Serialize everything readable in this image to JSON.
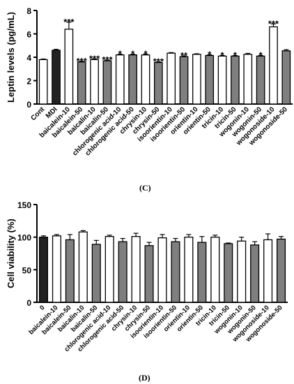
{
  "panels": {
    "c_label": "(C)",
    "d_label": "(D)"
  },
  "colors": {
    "white": "#ffffff",
    "black": "#222222",
    "gray": "#7f7f7f"
  },
  "chart_data": [
    {
      "type": "bar",
      "panel": "(C)",
      "ylabel": "Leptin levels (pg/mL)",
      "xlabel": "",
      "ylim": [
        0,
        8
      ],
      "yticks": [
        0,
        2,
        4,
        6,
        8
      ],
      "grid": false,
      "categories": [
        "Cont",
        "MDI",
        "baicalein-10",
        "baicalein-50",
        "baicalin-10",
        "baicalin-50",
        "chlorogenic acid-10",
        "chlorogenic acid-50",
        "chrysin-10",
        "chrysin-50",
        "isoorientin-10",
        "isoorientin-50",
        "orientin-10",
        "orientin-50",
        "tricin-10",
        "tricin-50",
        "wogonin-10",
        "wogonin-50",
        "wogonoside-10",
        "wogonoside-50"
      ],
      "values": [
        3.8,
        4.6,
        6.4,
        3.6,
        3.8,
        3.7,
        4.2,
        4.2,
        4.2,
        3.55,
        4.35,
        4.05,
        4.25,
        4.15,
        4.1,
        4.1,
        4.25,
        4.1,
        6.6,
        4.55
      ],
      "errors": [
        0.05,
        0.08,
        0.6,
        0.05,
        0.05,
        0.05,
        0.06,
        0.06,
        0.08,
        0.05,
        0.05,
        0.06,
        0.05,
        0.06,
        0.06,
        0.05,
        0.08,
        0.06,
        0.25,
        0.1
      ],
      "fills": [
        "white",
        "black",
        "white",
        "gray",
        "white",
        "gray",
        "white",
        "gray",
        "white",
        "gray",
        "white",
        "gray",
        "white",
        "gray",
        "white",
        "gray",
        "white",
        "gray",
        "white",
        "gray"
      ],
      "annotations": [
        "",
        "",
        "***",
        "***",
        "***",
        "***",
        "*",
        "*",
        "*",
        "***",
        "",
        "**",
        "",
        "*",
        "*",
        "*",
        "",
        "*",
        "***",
        ""
      ]
    },
    {
      "type": "bar",
      "panel": "(D)",
      "ylabel": "Cell viability (%)",
      "xlabel": "",
      "ylim": [
        0,
        150
      ],
      "yticks": [
        0,
        50,
        100,
        150
      ],
      "grid": false,
      "categories": [
        "0",
        "baicalein-10",
        "baicalein-50",
        "baicalin-10",
        "baicalin-50",
        "chlorogenic acid-10",
        "chlorogenic acid-50",
        "chrysin-10",
        "chrysin-50",
        "isoorientin-10",
        "isoorientin-50",
        "orientin-10",
        "orientin-50",
        "tricin-10",
        "tricin-50",
        "wogonin-10",
        "wogonin-50",
        "wogonoside-10",
        "wogonoside-50"
      ],
      "values": [
        100,
        102,
        96,
        108,
        89,
        101,
        93,
        101,
        87,
        99,
        93,
        100,
        92,
        100,
        90,
        94,
        88,
        96,
        97
      ],
      "errors": [
        2,
        2,
        8,
        2,
        6,
        2,
        5,
        5,
        5,
        5,
        5,
        4,
        9,
        3,
        1,
        6,
        5,
        9,
        4
      ],
      "fills": [
        "black",
        "white",
        "gray",
        "white",
        "gray",
        "white",
        "gray",
        "white",
        "gray",
        "white",
        "gray",
        "white",
        "gray",
        "white",
        "gray",
        "white",
        "gray",
        "white",
        "gray"
      ],
      "annotations": [
        "",
        "",
        "",
        "",
        "",
        "",
        "",
        "",
        "",
        "",
        "",
        "",
        "",
        "",
        "",
        "",
        "",
        "",
        ""
      ]
    }
  ]
}
